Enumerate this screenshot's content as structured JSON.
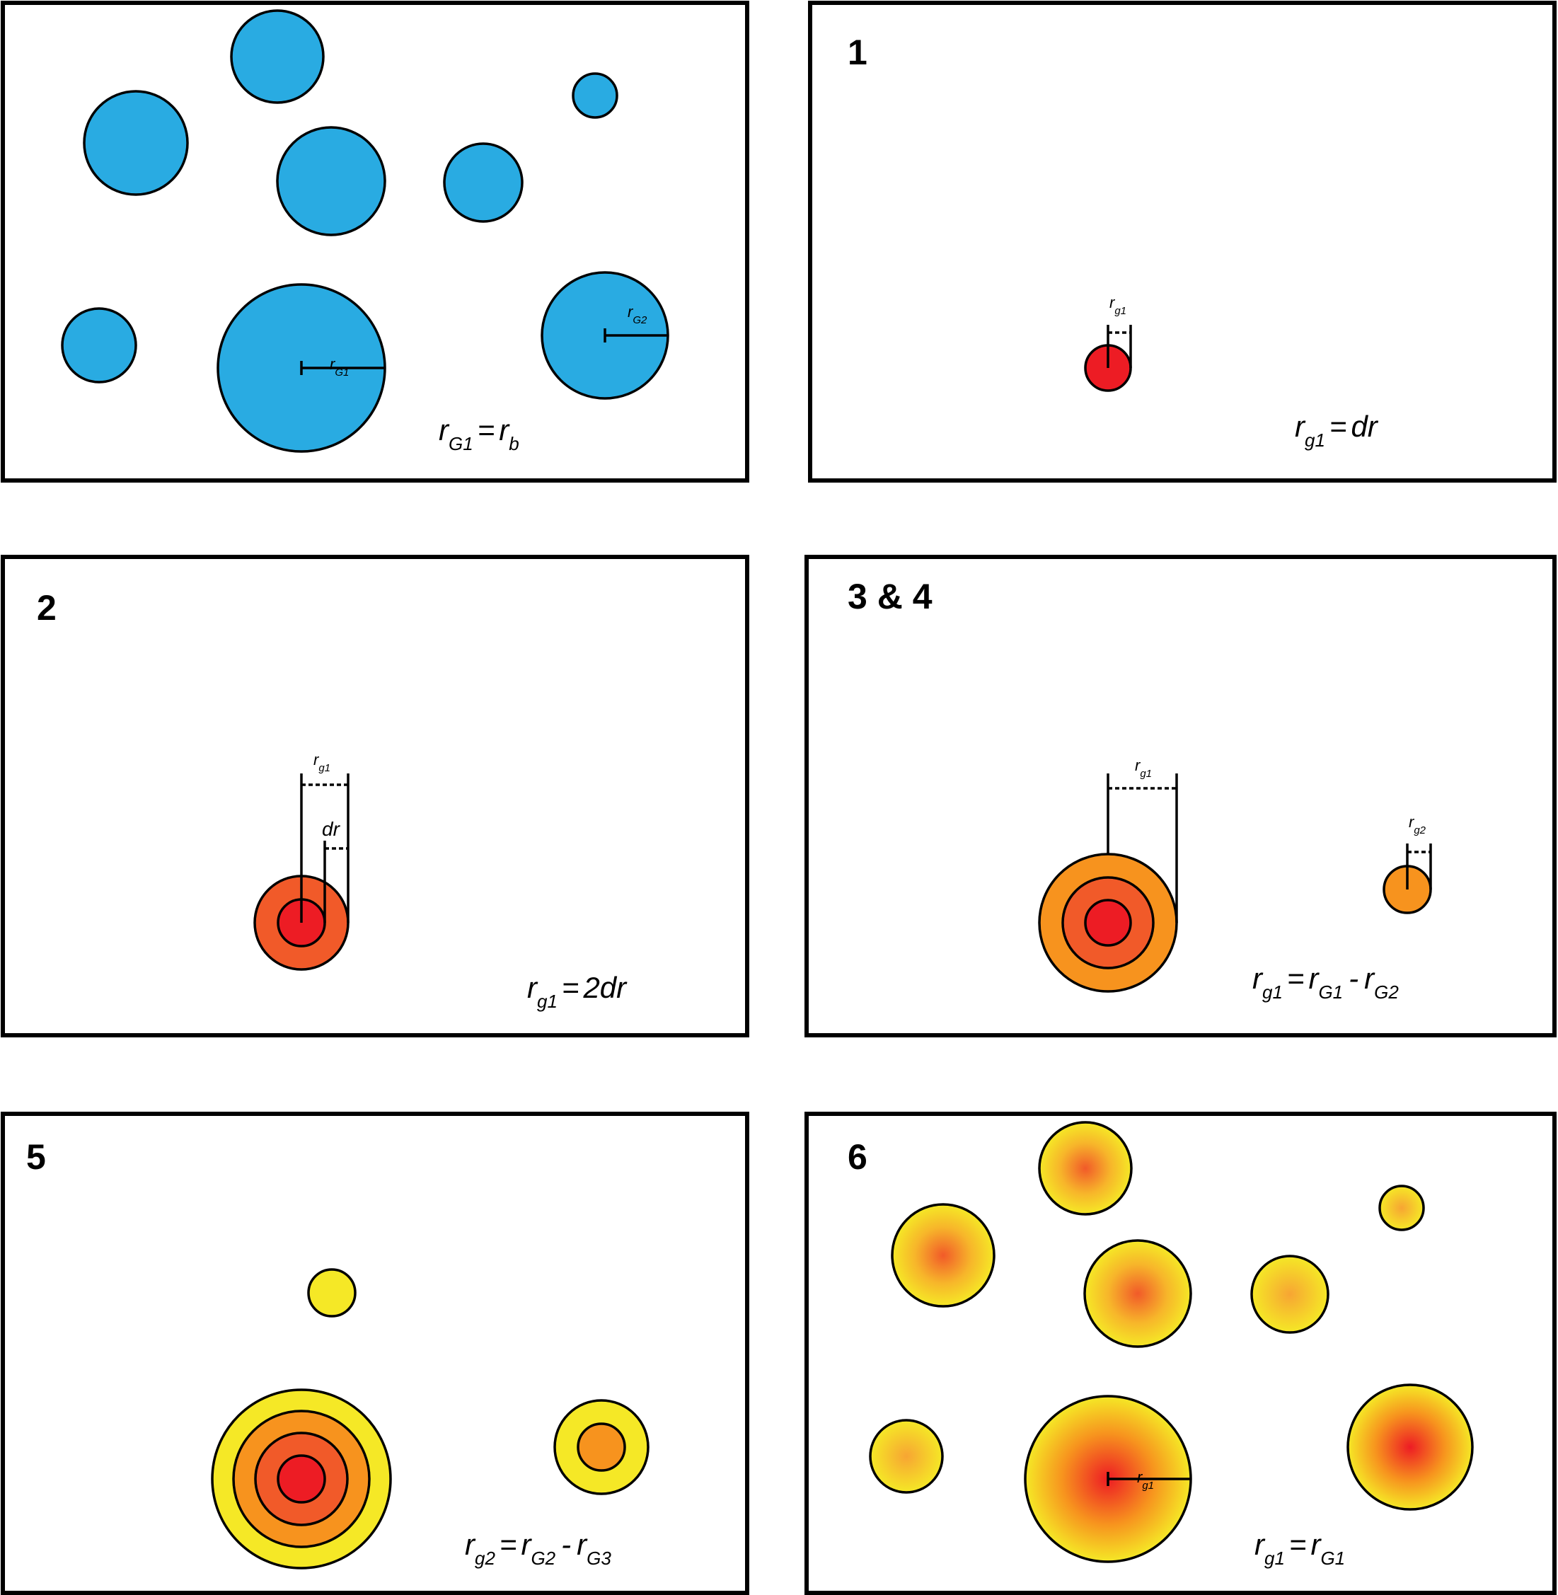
{
  "colors": {
    "blue": "#29abe2",
    "red": "#ed1c24",
    "red_orange": "#f15a29",
    "orange": "#f7931e",
    "yellow": "#f5e826",
    "outline": "#000000"
  },
  "panels": [
    {
      "id": "initial",
      "number": "",
      "measure_labels": [
        {
          "main": "r",
          "sub": "G1"
        },
        {
          "main": "r",
          "sub": "G2"
        }
      ],
      "equation": {
        "lhs": "r",
        "lhs_sub": "G1",
        "op": "=",
        "rhs": [
          {
            "main": "r",
            "sub": "b"
          }
        ]
      }
    },
    {
      "id": "step-1",
      "number": "1",
      "measure_labels": [
        {
          "main": "r",
          "sub": "g1"
        }
      ],
      "equation": {
        "lhs": "r",
        "lhs_sub": "g1",
        "op": "=",
        "rhs": [
          {
            "main": "dr",
            "sub": ""
          }
        ]
      }
    },
    {
      "id": "step-2",
      "number": "2",
      "measure_labels": [
        {
          "main": "r",
          "sub": "g1"
        },
        {
          "main": "dr",
          "sub": ""
        }
      ],
      "equation": {
        "lhs": "r",
        "lhs_sub": "g1",
        "op": "=",
        "rhs": [
          {
            "main": "2dr",
            "sub": ""
          }
        ]
      }
    },
    {
      "id": "step-3-4",
      "number": "3 & 4",
      "measure_labels": [
        {
          "main": "r",
          "sub": "g1"
        },
        {
          "main": "r",
          "sub": "g2"
        }
      ],
      "equation": {
        "lhs": "r",
        "lhs_sub": "g1",
        "op": "=",
        "rhs": [
          {
            "main": "r",
            "sub": "G1"
          },
          {
            "main": "-",
            "sub": ""
          },
          {
            "main": "r",
            "sub": "G2"
          }
        ]
      }
    },
    {
      "id": "step-5",
      "number": "5",
      "measure_labels": [],
      "equation": {
        "lhs": "r",
        "lhs_sub": "g2",
        "op": "=",
        "rhs": [
          {
            "main": "r",
            "sub": "G2"
          },
          {
            "main": "-",
            "sub": ""
          },
          {
            "main": "r",
            "sub": "G3"
          }
        ]
      }
    },
    {
      "id": "step-6",
      "number": "6",
      "measure_labels": [
        {
          "main": "r",
          "sub": "g1"
        }
      ],
      "equation": {
        "lhs": "r",
        "lhs_sub": "g1",
        "op": "=",
        "rhs": [
          {
            "main": "r",
            "sub": "G1"
          }
        ]
      }
    }
  ]
}
